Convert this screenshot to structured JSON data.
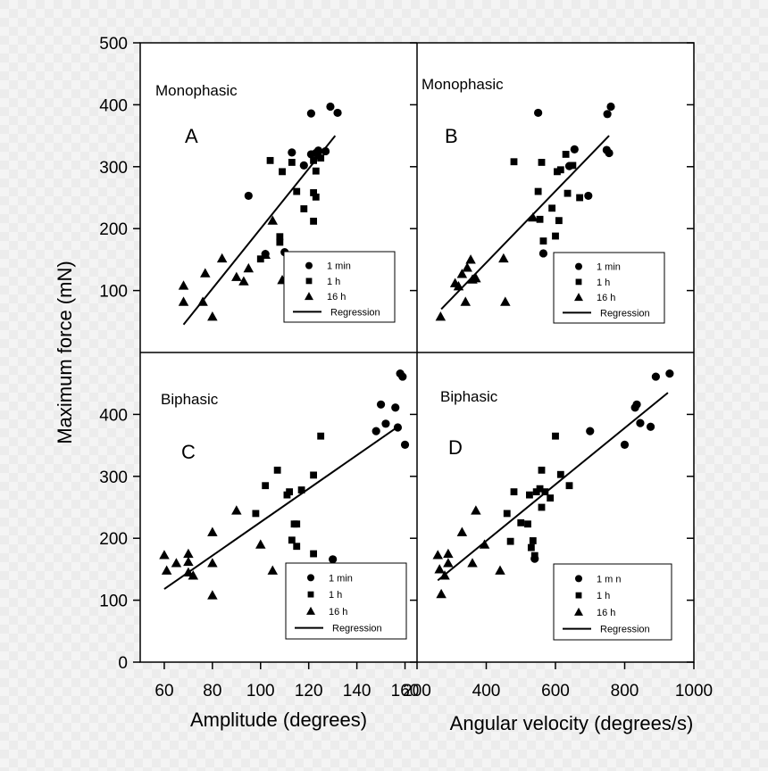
{
  "figure": {
    "ylabel": "Maximum force (mN)",
    "xlabel_left": "Amplitude (degrees)",
    "xlabel_right": "Angular velocity (degrees/s)",
    "left_x_ticks": [
      "60",
      "80",
      "100",
      "120",
      "140",
      "160"
    ],
    "right_x_ticks": [
      "200",
      "400",
      "600",
      "800",
      "1000"
    ],
    "top_y_ticks": [
      "100",
      "200",
      "300",
      "400",
      "500"
    ],
    "bottom_y_ticks": [
      "0",
      "100",
      "200",
      "300",
      "400"
    ],
    "colors": {
      "marker": "#000000",
      "background": "#ffffff"
    }
  },
  "chart_data": [
    {
      "type": "scatter",
      "panel": "A",
      "title": "Monophasic",
      "letter": "A",
      "xlim": [
        50,
        165
      ],
      "ylim": [
        0,
        500
      ],
      "legend_position": "bottom-right",
      "legend": {
        "min": "1 min",
        "hour": "1 h",
        "h16": "16 h",
        "regression": "Regression"
      },
      "series": [
        {
          "name": "1 min",
          "marker": "circle",
          "points": [
            [
              95,
              253
            ],
            [
              102,
              159
            ],
            [
              121,
              386
            ],
            [
              129,
              397
            ],
            [
              132,
              387
            ],
            [
              118,
              302
            ],
            [
              121,
              320
            ],
            [
              123,
              322
            ],
            [
              124,
              326
            ],
            [
              127,
              325
            ],
            [
              113,
              323
            ],
            [
              110,
              162
            ]
          ]
        },
        {
          "name": "1 h",
          "marker": "square",
          "points": [
            [
              104,
              310
            ],
            [
              109,
              292
            ],
            [
              113,
              307
            ],
            [
              115,
              260
            ],
            [
              118,
              232
            ],
            [
              122,
              212
            ],
            [
              122,
              258
            ],
            [
              123,
              251
            ],
            [
              123,
              293
            ],
            [
              125,
              314
            ],
            [
              122,
              310
            ],
            [
              100,
              151
            ],
            [
              108,
              187
            ],
            [
              108,
              178
            ]
          ]
        },
        {
          "name": "16 h",
          "marker": "triangle",
          "points": [
            [
              68,
              108
            ],
            [
              68,
              82
            ],
            [
              76,
              82
            ],
            [
              77,
              128
            ],
            [
              80,
              58
            ],
            [
              84,
              152
            ],
            [
              90,
              122
            ],
            [
              93,
              115
            ],
            [
              95,
              136
            ],
            [
              105,
              213
            ],
            [
              109,
              117
            ],
            [
              102,
              158
            ]
          ]
        }
      ],
      "regression": [
        [
          68,
          45
        ],
        [
          131,
          350
        ]
      ]
    },
    {
      "type": "scatter",
      "panel": "B",
      "title": "Monophasic",
      "letter": "B",
      "xlim": [
        200,
        1000
      ],
      "ylim": [
        0,
        500
      ],
      "legend_position": "bottom-right",
      "legend": {
        "min": "1 min",
        "hour": "1 h",
        "h16": "16 h",
        "regression": "Regression"
      },
      "series": [
        {
          "name": "1 min",
          "marker": "circle",
          "points": [
            [
              550,
              387
            ],
            [
              565,
              160
            ],
            [
              640,
              301
            ],
            [
              655,
              328
            ],
            [
              695,
              253
            ],
            [
              760,
              397
            ],
            [
              750,
              385
            ],
            [
              748,
              327
            ],
            [
              755,
              322
            ]
          ]
        },
        {
          "name": "1 h",
          "marker": "square",
          "points": [
            [
              480,
              308
            ],
            [
              550,
              260
            ],
            [
              555,
              215
            ],
            [
              560,
              307
            ],
            [
              565,
              180
            ],
            [
              590,
              233
            ],
            [
              600,
              188
            ],
            [
              605,
              292
            ],
            [
              610,
              213
            ],
            [
              615,
              295
            ],
            [
              630,
              320
            ],
            [
              635,
              257
            ],
            [
              650,
              302
            ],
            [
              670,
              250
            ]
          ]
        },
        {
          "name": "16 h",
          "marker": "triangle",
          "points": [
            [
              268,
              58
            ],
            [
              310,
              112
            ],
            [
              320,
              107
            ],
            [
              330,
              127
            ],
            [
              340,
              82
            ],
            [
              345,
              137
            ],
            [
              355,
              150
            ],
            [
              360,
              118
            ],
            [
              370,
              120
            ],
            [
              450,
              152
            ],
            [
              455,
              82
            ],
            [
              535,
              218
            ]
          ]
        }
      ],
      "regression": [
        [
          270,
          70
        ],
        [
          755,
          350
        ]
      ]
    },
    {
      "type": "scatter",
      "panel": "C",
      "title": "Biphasic",
      "letter": "C",
      "xlim": [
        50,
        165
      ],
      "ylim": [
        0,
        500
      ],
      "legend_position": "bottom-right",
      "legend": {
        "min": "1 min",
        "hour": "1 h",
        "h16": "16 h",
        "regression": "Regression"
      },
      "series": [
        {
          "name": "1 min",
          "marker": "circle",
          "points": [
            [
              148,
              373
            ],
            [
              150,
              416
            ],
            [
              152,
              385
            ],
            [
              156,
              411
            ],
            [
              157,
              379
            ],
            [
              158,
              466
            ],
            [
              159,
              461
            ],
            [
              160,
              351
            ],
            [
              130,
              166
            ]
          ]
        },
        {
          "name": "1 h",
          "marker": "square",
          "points": [
            [
              98,
              240
            ],
            [
              102,
              285
            ],
            [
              107,
              310
            ],
            [
              111,
              270
            ],
            [
              112,
              275
            ],
            [
              114,
              223
            ],
            [
              115,
              223
            ],
            [
              117,
              278
            ],
            [
              113,
              197
            ],
            [
              115,
              187
            ],
            [
              122,
              302
            ],
            [
              122,
              175
            ],
            [
              125,
              365
            ]
          ]
        },
        {
          "name": "16 h",
          "marker": "triangle",
          "points": [
            [
              60,
              173
            ],
            [
              61,
              148
            ],
            [
              65,
              160
            ],
            [
              70,
              175
            ],
            [
              70,
              162
            ],
            [
              70,
              145
            ],
            [
              72,
              140
            ],
            [
              80,
              210
            ],
            [
              80,
              160
            ],
            [
              80,
              108
            ],
            [
              90,
              245
            ],
            [
              100,
              190
            ],
            [
              105,
              148
            ]
          ]
        }
      ],
      "regression": [
        [
          60,
          118
        ],
        [
          157,
          380
        ]
      ]
    },
    {
      "type": "scatter",
      "panel": "D",
      "title": "Biphasic",
      "letter": "D",
      "xlim": [
        200,
        1000
      ],
      "ylim": [
        0,
        500
      ],
      "legend_position": "bottom-right",
      "legend": {
        "min": "1 m n",
        "hour": "1 h",
        "h16": "16 h",
        "regression": "Regression"
      },
      "series": [
        {
          "name": "1 m n",
          "marker": "circle",
          "points": [
            [
              540,
              167
            ],
            [
              700,
              373
            ],
            [
              800,
              351
            ],
            [
              830,
              411
            ],
            [
              835,
              416
            ],
            [
              845,
              386
            ],
            [
              875,
              380
            ],
            [
              890,
              461
            ],
            [
              930,
              466
            ]
          ]
        },
        {
          "name": "1 h",
          "marker": "square",
          "points": [
            [
              460,
              240
            ],
            [
              470,
              195
            ],
            [
              480,
              275
            ],
            [
              500,
              225
            ],
            [
              520,
              223
            ],
            [
              525,
              270
            ],
            [
              530,
              185
            ],
            [
              535,
              196
            ],
            [
              540,
              172
            ],
            [
              545,
              275
            ],
            [
              555,
              280
            ],
            [
              560,
              310
            ],
            [
              560,
              250
            ],
            [
              570,
              275
            ],
            [
              585,
              265
            ],
            [
              600,
              365
            ],
            [
              615,
              303
            ],
            [
              640,
              285
            ]
          ]
        },
        {
          "name": "16 h",
          "marker": "triangle",
          "points": [
            [
              260,
              173
            ],
            [
              265,
              150
            ],
            [
              270,
              110
            ],
            [
              280,
              140
            ],
            [
              290,
              175
            ],
            [
              290,
              160
            ],
            [
              330,
              210
            ],
            [
              370,
              245
            ],
            [
              395,
              190
            ],
            [
              360,
              160
            ],
            [
              440,
              148
            ]
          ]
        }
      ],
      "regression": [
        [
          260,
          132
        ],
        [
          925,
          435
        ]
      ]
    }
  ]
}
